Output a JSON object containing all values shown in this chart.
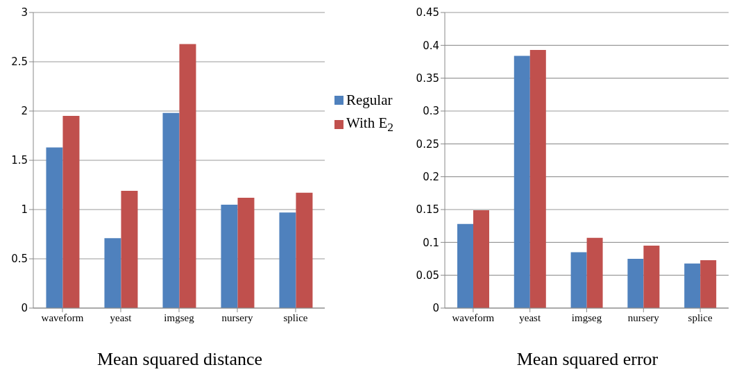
{
  "chart_data": [
    {
      "type": "bar",
      "title": "Mean squared distance",
      "categories": [
        "waveform",
        "yeast",
        "imgseg",
        "nursery",
        "splice"
      ],
      "series": [
        {
          "name": "Regular",
          "color": "#4f81bd",
          "values": [
            1.63,
            0.71,
            1.98,
            1.05,
            0.97
          ]
        },
        {
          "name": "With E$_{2}$",
          "color": "#c0504d",
          "values": [
            1.95,
            1.19,
            2.68,
            1.12,
            1.17
          ]
        }
      ],
      "ylim": [
        0,
        3
      ],
      "yticks": [
        0,
        0.5,
        1,
        1.5,
        2,
        2.5,
        3
      ],
      "grid": "y",
      "legend": "right"
    },
    {
      "type": "bar",
      "title": "Mean squared error",
      "categories": [
        "waveform",
        "yeast",
        "imgseg",
        "nursery",
        "splice"
      ],
      "series": [
        {
          "color": "#4f81bd",
          "values": [
            0.128,
            0.384,
            0.085,
            0.075,
            0.068
          ]
        },
        {
          "color": "#c0504d",
          "values": [
            0.149,
            0.393,
            0.107,
            0.095,
            0.073
          ]
        }
      ],
      "ylim": [
        0,
        0.45
      ],
      "yticks": [
        0,
        0.05,
        0.1,
        0.15,
        0.2,
        0.25,
        0.3,
        0.35,
        0.4,
        0.45
      ],
      "grid": "y"
    }
  ]
}
